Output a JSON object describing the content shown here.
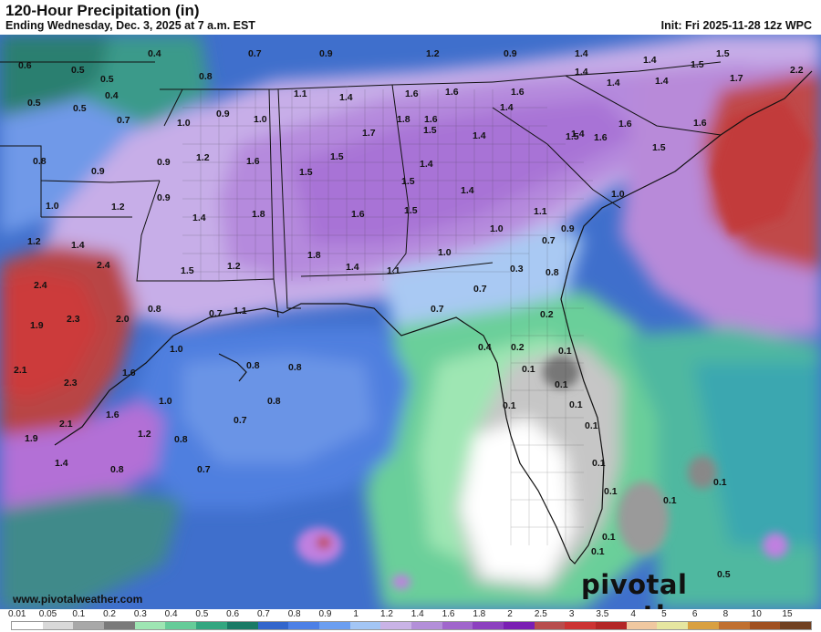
{
  "header": {
    "title": "120-Hour Precipitation (in)",
    "subtitle": "Ending Wednesday, Dec. 3, 2025 at 7 a.m. EST",
    "init": "Init: Fri 2025-11-28 12z WPC"
  },
  "footer": {
    "site": "www.pivotalweather.com",
    "brand": "pivotal weather"
  },
  "legend": {
    "labels": [
      "0.01",
      "0.05",
      "0.1",
      "0.2",
      "0.3",
      "0.4",
      "0.5",
      "0.6",
      "0.7",
      "0.8",
      "0.9",
      "1",
      "1.2",
      "1.4",
      "1.6",
      "1.8",
      "2",
      "2.5",
      "3",
      "3.5",
      "4",
      "5",
      "6",
      "8",
      "10",
      "15"
    ],
    "colors": [
      "#ffffff",
      "#d9d9d9",
      "#a8a8a8",
      "#7a7a7a",
      "#9ee6b3",
      "#66cc99",
      "#33a680",
      "#1a7a66",
      "#3366cc",
      "#4d80e6",
      "#6b9ef0",
      "#a3c6f5",
      "#c9b3e6",
      "#b38fd9",
      "#a066cc",
      "#8c40bf",
      "#7a1fb3",
      "#b84d4d",
      "#cc3333",
      "#b32626",
      "#f0c8a0",
      "#e6e6a0",
      "#d9a040",
      "#c07030",
      "#a05020",
      "#704020"
    ]
  },
  "map": {
    "value_labels": [
      {
        "text": "0.6"
      },
      {
        "text": "0.4"
      },
      {
        "text": "0.7"
      },
      {
        "text": "0.9"
      },
      {
        "text": "1.2"
      },
      {
        "text": "0.9"
      },
      {
        "text": "1.4"
      },
      {
        "text": "1.4"
      },
      {
        "text": "1.5"
      },
      {
        "text": "1.5"
      },
      {
        "text": "0.5"
      },
      {
        "text": "0.5"
      },
      {
        "text": "0.8"
      },
      {
        "text": "1.4"
      },
      {
        "text": "1.6"
      },
      {
        "text": "1.6"
      },
      {
        "text": "1.6"
      },
      {
        "text": "1.4"
      },
      {
        "text": "1.4"
      },
      {
        "text": "1.7"
      },
      {
        "text": "2.2"
      },
      {
        "text": "0.4"
      },
      {
        "text": "0.5"
      },
      {
        "text": "1.1"
      },
      {
        "text": "1.4"
      },
      {
        "text": "1.6"
      },
      {
        "text": "1.4"
      },
      {
        "text": "1.6"
      },
      {
        "text": "0.5"
      },
      {
        "text": "0.9"
      },
      {
        "text": "0.7"
      },
      {
        "text": "1.0"
      },
      {
        "text": "1.0"
      },
      {
        "text": "1.8"
      },
      {
        "text": "1.4"
      },
      {
        "text": "1.4"
      },
      {
        "text": "1.6"
      },
      {
        "text": "1.7"
      },
      {
        "text": "1.5"
      },
      {
        "text": "1.5"
      },
      {
        "text": "1.6"
      },
      {
        "text": "0.8"
      },
      {
        "text": "0.9"
      },
      {
        "text": "0.9"
      },
      {
        "text": "1.2"
      },
      {
        "text": "1.6"
      },
      {
        "text": "1.5"
      },
      {
        "text": "1.5"
      },
      {
        "text": "1.4"
      },
      {
        "text": "1.5"
      },
      {
        "text": "1.5"
      },
      {
        "text": "0.9"
      },
      {
        "text": "1.4"
      },
      {
        "text": "1.0"
      },
      {
        "text": "1.0"
      },
      {
        "text": "1.2"
      },
      {
        "text": "1.4"
      },
      {
        "text": "1.8"
      },
      {
        "text": "1.6"
      },
      {
        "text": "1.5"
      },
      {
        "text": "1.0"
      },
      {
        "text": "1.1"
      },
      {
        "text": "0.9"
      },
      {
        "text": "1.2"
      },
      {
        "text": "1.4"
      },
      {
        "text": "1.8"
      },
      {
        "text": "1.0"
      },
      {
        "text": "0.7"
      },
      {
        "text": "0.8"
      },
      {
        "text": "2.4"
      },
      {
        "text": "1.2"
      },
      {
        "text": "1.5"
      },
      {
        "text": "1.4"
      },
      {
        "text": "1.1"
      },
      {
        "text": "0.7"
      },
      {
        "text": "0.3"
      },
      {
        "text": "2.4"
      },
      {
        "text": "0.7"
      },
      {
        "text": "1.1"
      },
      {
        "text": "0.7"
      },
      {
        "text": "0.2"
      },
      {
        "text": "1.9"
      },
      {
        "text": "2.3"
      },
      {
        "text": "2.0"
      },
      {
        "text": "0.8"
      },
      {
        "text": "1.0"
      },
      {
        "text": "0.4"
      },
      {
        "text": "0.2"
      },
      {
        "text": "0.1"
      },
      {
        "text": "2.1"
      },
      {
        "text": "1.6"
      },
      {
        "text": "0.8"
      },
      {
        "text": "0.8"
      },
      {
        "text": "0.1"
      },
      {
        "text": "2.3"
      },
      {
        "text": "1.0"
      },
      {
        "text": "0.8"
      },
      {
        "text": "0.1"
      },
      {
        "text": "0.1"
      },
      {
        "text": "1.6"
      },
      {
        "text": "0.7"
      },
      {
        "text": "0.1"
      },
      {
        "text": "2.1"
      },
      {
        "text": "1.2"
      },
      {
        "text": "1.9"
      },
      {
        "text": "0.8"
      },
      {
        "text": "1.4"
      },
      {
        "text": "0.8"
      },
      {
        "text": "0.7"
      },
      {
        "text": "0.1"
      },
      {
        "text": "0.1"
      },
      {
        "text": "0.1"
      },
      {
        "text": "0.1"
      },
      {
        "text": "0.1"
      },
      {
        "text": "0.1"
      },
      {
        "text": "0.1"
      },
      {
        "text": "0.5"
      }
    ]
  }
}
